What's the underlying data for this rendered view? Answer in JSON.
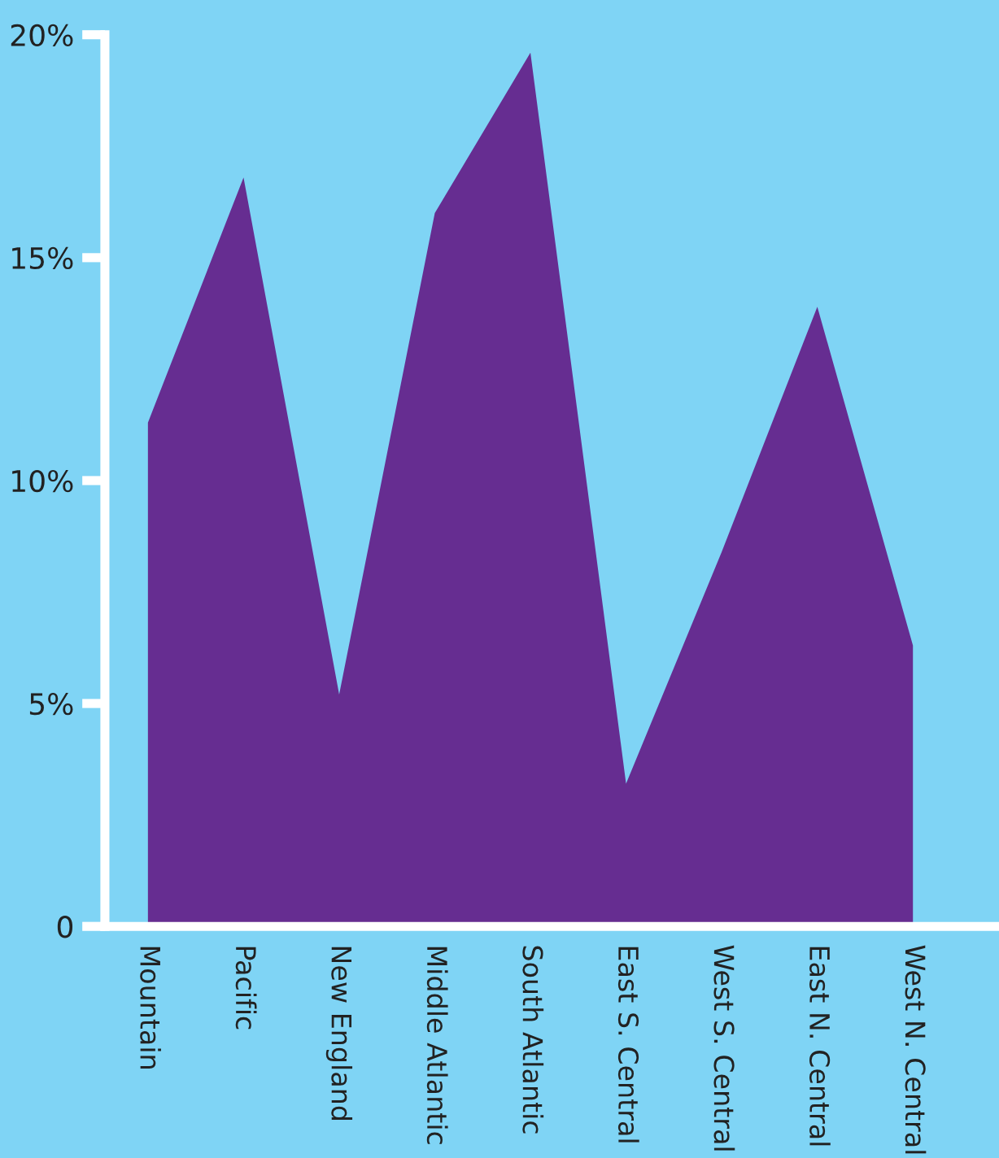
{
  "chart_data": {
    "type": "area",
    "categories": [
      "Mountain",
      "Pacific",
      "New England",
      "Middle Atlantic",
      "South Atlantic",
      "East S. Central",
      "West S. Central",
      "East N. Central",
      "West N. Central"
    ],
    "series": [
      {
        "color": "#662d91",
        "values": [
          11.3,
          16.8,
          5.2,
          16.0,
          19.6,
          3.2,
          8.4,
          13.9,
          6.3
        ]
      }
    ],
    "ylim": [
      0,
      20
    ],
    "yticks": [
      {
        "value": 0,
        "label": "0"
      },
      {
        "value": 5,
        "label": "5%"
      },
      {
        "value": 10,
        "label": "10%"
      },
      {
        "value": 15,
        "label": "15%"
      },
      {
        "value": 20,
        "label": "20%"
      }
    ],
    "grid": false,
    "legend": false
  }
}
